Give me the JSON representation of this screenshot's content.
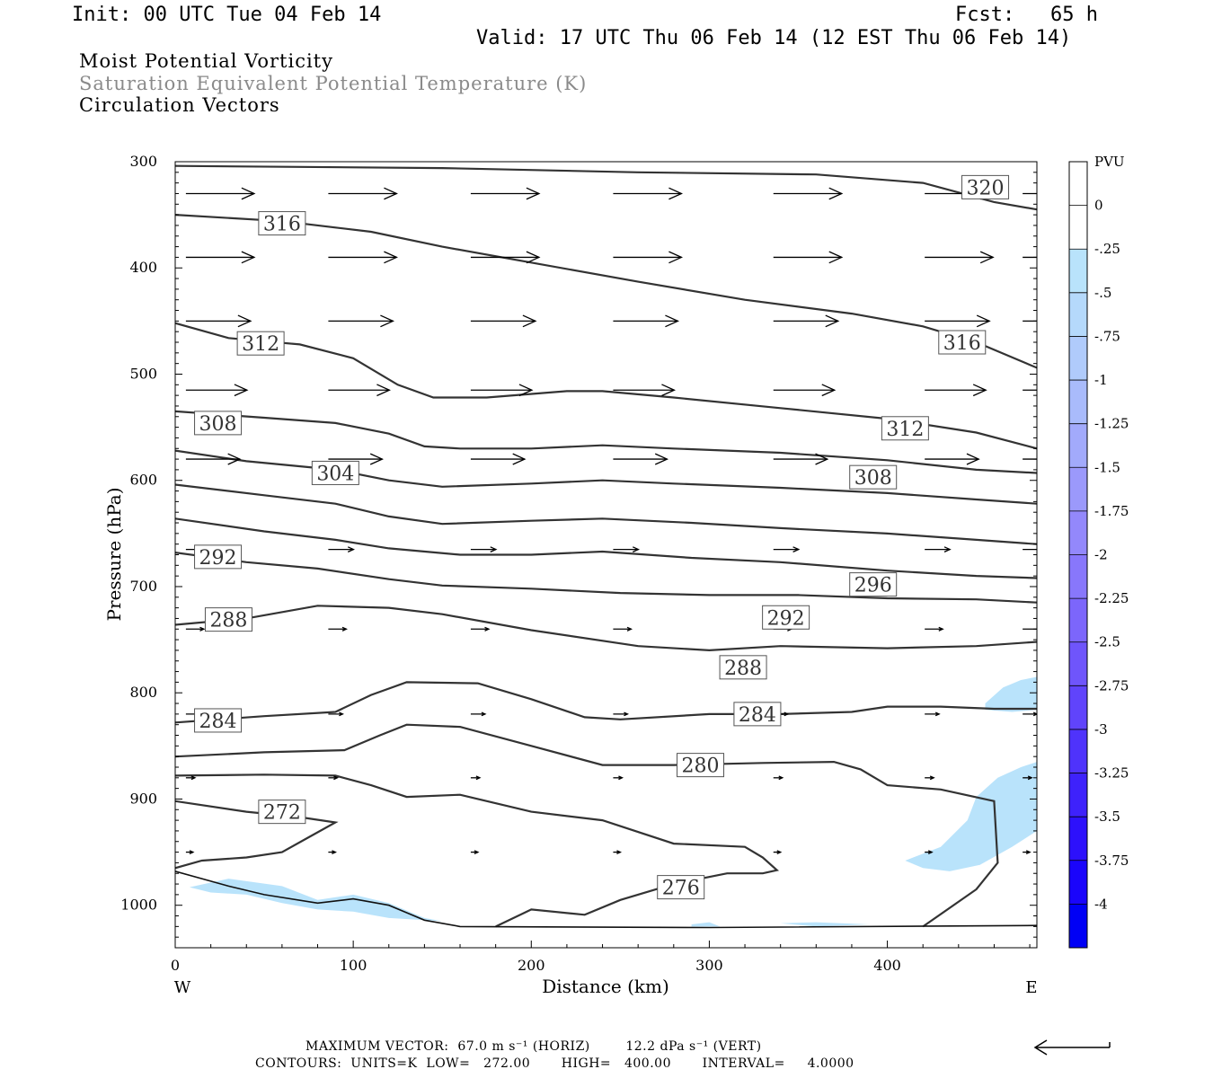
{
  "header": {
    "init": "Init: 00 UTC Tue 04 Feb 14",
    "fcst": "Fcst:   65 h",
    "valid": "Valid: 17 UTC Thu 06 Feb 14 (12 EST Thu 06 Feb 14)"
  },
  "titles": {
    "line1": "Moist Potential Vorticity",
    "line2": "Saturation Equivalent Potential Temperature (K)",
    "line3": "Circulation Vectors"
  },
  "footer": {
    "max_vector": "MAXIMUM VECTOR:  67.0 m s⁻¹ (HORIZ)        12.2 dPa s⁻¹ (VERT)",
    "contours": "CONTOURS:  UNITS=K  LOW=   272.00       HIGH=   400.00       INTERVAL=     4.0000"
  },
  "colors": {
    "contour": "#333333",
    "vector": "#000000",
    "shading_light": "#b9e3fb"
  },
  "chart_data": {
    "type": "contour",
    "xlabel": "Distance (km)",
    "ylabel": "Pressure (hPa)",
    "xlim": [
      0,
      484
    ],
    "ylim": [
      1040,
      300
    ],
    "x_ticks": [
      0,
      100,
      200,
      300,
      400
    ],
    "y_ticks": [
      300,
      400,
      500,
      600,
      700,
      800,
      900,
      1000
    ],
    "direction_left": "W",
    "direction_right": "E",
    "contour_levels": [
      {
        "value": 320,
        "label": "320",
        "points": [
          [
            0,
            304
          ],
          [
            150,
            306
          ],
          [
            260,
            310
          ],
          [
            360,
            312
          ],
          [
            420,
            320
          ],
          [
            460,
            338
          ],
          [
            484,
            345
          ]
        ]
      },
      {
        "value": 316,
        "label": "316",
        "points": [
          [
            0,
            350
          ],
          [
            60,
            356
          ],
          [
            110,
            366
          ],
          [
            150,
            380
          ],
          [
            200,
            395
          ],
          [
            260,
            413
          ],
          [
            320,
            430
          ],
          [
            380,
            443
          ],
          [
            420,
            455
          ],
          [
            450,
            470
          ],
          [
            484,
            494
          ]
        ]
      },
      {
        "value": 312,
        "label": "312",
        "points": [
          [
            0,
            452
          ],
          [
            30,
            466
          ],
          [
            70,
            472
          ],
          [
            100,
            485
          ],
          [
            125,
            510
          ],
          [
            145,
            522
          ],
          [
            175,
            522
          ],
          [
            220,
            516
          ],
          [
            240,
            516
          ],
          [
            280,
            522
          ],
          [
            340,
            532
          ],
          [
            400,
            542
          ],
          [
            450,
            555
          ],
          [
            484,
            570
          ]
        ]
      },
      {
        "value": 308,
        "label": "308",
        "points": [
          [
            0,
            535
          ],
          [
            50,
            541
          ],
          [
            90,
            546
          ],
          [
            120,
            556
          ],
          [
            140,
            568
          ],
          [
            160,
            570
          ],
          [
            200,
            570
          ],
          [
            240,
            567
          ],
          [
            280,
            570
          ],
          [
            340,
            574
          ],
          [
            400,
            581
          ],
          [
            450,
            590
          ],
          [
            484,
            593
          ]
        ]
      },
      {
        "value": 304,
        "label": "304",
        "points": [
          [
            0,
            572
          ],
          [
            40,
            582
          ],
          [
            90,
            590
          ],
          [
            120,
            600
          ],
          [
            150,
            606
          ],
          [
            200,
            603
          ],
          [
            240,
            600
          ],
          [
            280,
            603
          ],
          [
            340,
            607
          ],
          [
            400,
            612
          ],
          [
            450,
            618
          ],
          [
            484,
            622
          ]
        ]
      },
      {
        "value": 300,
        "label": "",
        "points": [
          [
            0,
            604
          ],
          [
            50,
            614
          ],
          [
            90,
            622
          ],
          [
            120,
            634
          ],
          [
            150,
            641
          ],
          [
            200,
            638
          ],
          [
            240,
            636
          ],
          [
            290,
            640
          ],
          [
            340,
            645
          ],
          [
            400,
            650
          ],
          [
            450,
            656
          ],
          [
            484,
            660
          ]
        ]
      },
      {
        "value": 296,
        "label": "296",
        "points": [
          [
            0,
            636
          ],
          [
            50,
            648
          ],
          [
            90,
            656
          ],
          [
            120,
            664
          ],
          [
            160,
            670
          ],
          [
            200,
            670
          ],
          [
            240,
            667
          ],
          [
            290,
            673
          ],
          [
            340,
            677
          ],
          [
            400,
            685
          ],
          [
            450,
            690
          ],
          [
            484,
            692
          ]
        ]
      },
      {
        "value": 292,
        "label": "292",
        "points": [
          [
            0,
            668
          ],
          [
            40,
            677
          ],
          [
            80,
            683
          ],
          [
            120,
            693
          ],
          [
            150,
            699
          ],
          [
            200,
            702
          ],
          [
            250,
            706
          ],
          [
            300,
            708
          ],
          [
            350,
            708
          ],
          [
            400,
            711
          ],
          [
            450,
            712
          ],
          [
            484,
            715
          ]
        ]
      },
      {
        "value": 288,
        "label": "288",
        "points": [
          [
            0,
            736
          ],
          [
            40,
            730
          ],
          [
            80,
            718
          ],
          [
            120,
            720
          ],
          [
            150,
            726
          ],
          [
            200,
            741
          ],
          [
            260,
            756
          ],
          [
            300,
            760
          ],
          [
            340,
            756
          ],
          [
            400,
            758
          ],
          [
            450,
            756
          ],
          [
            484,
            752
          ]
        ]
      },
      {
        "value": 284,
        "label": "284",
        "points": [
          [
            0,
            828
          ],
          [
            50,
            822
          ],
          [
            90,
            818
          ],
          [
            110,
            802
          ],
          [
            130,
            790
          ],
          [
            170,
            791
          ],
          [
            200,
            806
          ],
          [
            230,
            823
          ],
          [
            250,
            825
          ],
          [
            300,
            820
          ],
          [
            340,
            820
          ],
          [
            380,
            818
          ],
          [
            400,
            813
          ],
          [
            430,
            813
          ],
          [
            460,
            815
          ],
          [
            484,
            815
          ]
        ]
      },
      {
        "value": 280,
        "label": "280",
        "points": [
          [
            0,
            860
          ],
          [
            50,
            856
          ],
          [
            95,
            854
          ],
          [
            115,
            840
          ],
          [
            130,
            830
          ],
          [
            160,
            832
          ],
          [
            200,
            850
          ],
          [
            240,
            868
          ],
          [
            280,
            868
          ],
          [
            330,
            866
          ],
          [
            370,
            865
          ],
          [
            385,
            872
          ],
          [
            400,
            887
          ],
          [
            430,
            891
          ],
          [
            460,
            902
          ],
          [
            462,
            960
          ],
          [
            450,
            985
          ],
          [
            420,
            1020
          ]
        ]
      },
      {
        "value": 276,
        "label": "276",
        "points": [
          [
            0,
            878
          ],
          [
            50,
            877
          ],
          [
            90,
            878
          ],
          [
            110,
            887
          ],
          [
            130,
            898
          ],
          [
            160,
            896
          ],
          [
            200,
            912
          ],
          [
            240,
            920
          ],
          [
            280,
            942
          ],
          [
            320,
            945
          ],
          [
            330,
            955
          ],
          [
            338,
            967
          ],
          [
            330,
            970
          ],
          [
            310,
            970
          ],
          [
            280,
            980
          ],
          [
            250,
            995
          ],
          [
            230,
            1009
          ],
          [
            200,
            1004
          ],
          [
            180,
            1020
          ]
        ]
      },
      {
        "value": 272,
        "label": "272",
        "points": [
          [
            0,
            902
          ],
          [
            40,
            912
          ],
          [
            70,
            917
          ],
          [
            90,
            922
          ],
          [
            75,
            936
          ],
          [
            60,
            950
          ],
          [
            40,
            955
          ],
          [
            15,
            958
          ],
          [
            0,
            965
          ]
        ]
      }
    ],
    "shaded_regions": [
      {
        "level_range": "-0.25 to 0",
        "points": [
          [
            455,
            810
          ],
          [
            465,
            795
          ],
          [
            475,
            788
          ],
          [
            484,
            785
          ],
          [
            484,
            816
          ],
          [
            470,
            818
          ],
          [
            455,
            816
          ]
        ]
      },
      {
        "level_range": "-0.25 to 0",
        "points": [
          [
            410,
            958
          ],
          [
            430,
            945
          ],
          [
            445,
            920
          ],
          [
            450,
            898
          ],
          [
            462,
            880
          ],
          [
            475,
            870
          ],
          [
            484,
            865
          ],
          [
            484,
            930
          ],
          [
            470,
            945
          ],
          [
            452,
            962
          ],
          [
            435,
            968
          ],
          [
            420,
            965
          ]
        ]
      },
      {
        "level_range": "-0.25 to 0",
        "points": [
          [
            8,
            983
          ],
          [
            30,
            975
          ],
          [
            60,
            982
          ],
          [
            80,
            995
          ],
          [
            100,
            990
          ],
          [
            120,
            998
          ],
          [
            140,
            1012
          ],
          [
            150,
            1015
          ],
          [
            120,
            1012
          ],
          [
            100,
            1006
          ],
          [
            80,
            1004
          ],
          [
            60,
            998
          ],
          [
            40,
            990
          ],
          [
            20,
            988
          ]
        ]
      },
      {
        "level_range": "-0.25 to 0",
        "points": [
          [
            290,
            1018
          ],
          [
            300,
            1016
          ],
          [
            306,
            1020
          ],
          [
            290,
            1020
          ]
        ]
      },
      {
        "level_range": "-0.25 to 0",
        "points": [
          [
            340,
            1017
          ],
          [
            360,
            1016
          ],
          [
            390,
            1018
          ],
          [
            360,
            1020
          ]
        ]
      }
    ],
    "terrain_line": [
      [
        0,
        968
      ],
      [
        30,
        982
      ],
      [
        50,
        990
      ],
      [
        80,
        998
      ],
      [
        100,
        994
      ],
      [
        120,
        1000
      ],
      [
        140,
        1014
      ],
      [
        160,
        1020
      ],
      [
        300,
        1021
      ],
      [
        484,
        1019
      ]
    ],
    "vectors": [
      {
        "p": 330,
        "x": [
          0,
          80,
          160,
          240,
          330,
          415,
          470
        ],
        "u": 38,
        "w": 0
      },
      {
        "p": 390,
        "x": [
          0,
          80,
          160,
          240,
          330,
          415,
          470
        ],
        "u": 38,
        "w": 0
      },
      {
        "p": 450,
        "x": [
          0,
          80,
          160,
          240,
          330,
          415,
          470
        ],
        "u": 36,
        "w": 0
      },
      {
        "p": 515,
        "x": [
          0,
          80,
          160,
          240,
          330,
          415,
          470
        ],
        "u": 34,
        "w": 0
      },
      {
        "p": 580,
        "x": [
          0,
          80,
          160,
          240,
          330,
          415,
          470
        ],
        "u": 30,
        "w": 0
      },
      {
        "p": 665,
        "x": [
          0,
          80,
          160,
          240,
          330,
          415,
          470
        ],
        "u": 14,
        "w": 0
      },
      {
        "p": 740,
        "x": [
          0,
          80,
          160,
          240,
          330,
          415,
          470
        ],
        "u": 10,
        "w": 0
      },
      {
        "p": 820,
        "x": [
          0,
          80,
          160,
          240,
          330,
          415,
          470
        ],
        "u": 8,
        "w": 0
      },
      {
        "p": 880,
        "x": [
          0,
          80,
          160,
          240,
          330,
          415,
          470
        ],
        "u": 5,
        "w": 0
      },
      {
        "p": 950,
        "x": [
          0,
          80,
          160,
          240,
          330,
          415,
          470
        ],
        "u": 4,
        "w": 0
      }
    ]
  },
  "colorbar": {
    "title": "PVU",
    "labels": [
      "0",
      "-.25",
      "-.5",
      "-.75",
      "-1",
      "-1.25",
      "-1.5",
      "-1.75",
      "-2",
      "-2.25",
      "-2.5",
      "-2.75",
      "-3",
      "-3.25",
      "-3.5",
      "-3.75",
      "-4"
    ],
    "colors": [
      "#ffffff",
      "#b9e3fb",
      "#b5d9fb",
      "#b0cbfb",
      "#a9bbfb",
      "#a2aafb",
      "#9b99fb",
      "#9388fb",
      "#8877fb",
      "#7c66fb",
      "#6f55fb",
      "#6044fb",
      "#4f33fb",
      "#3e22fb",
      "#2d11fb",
      "#1a05fb",
      "#0000f5"
    ]
  }
}
